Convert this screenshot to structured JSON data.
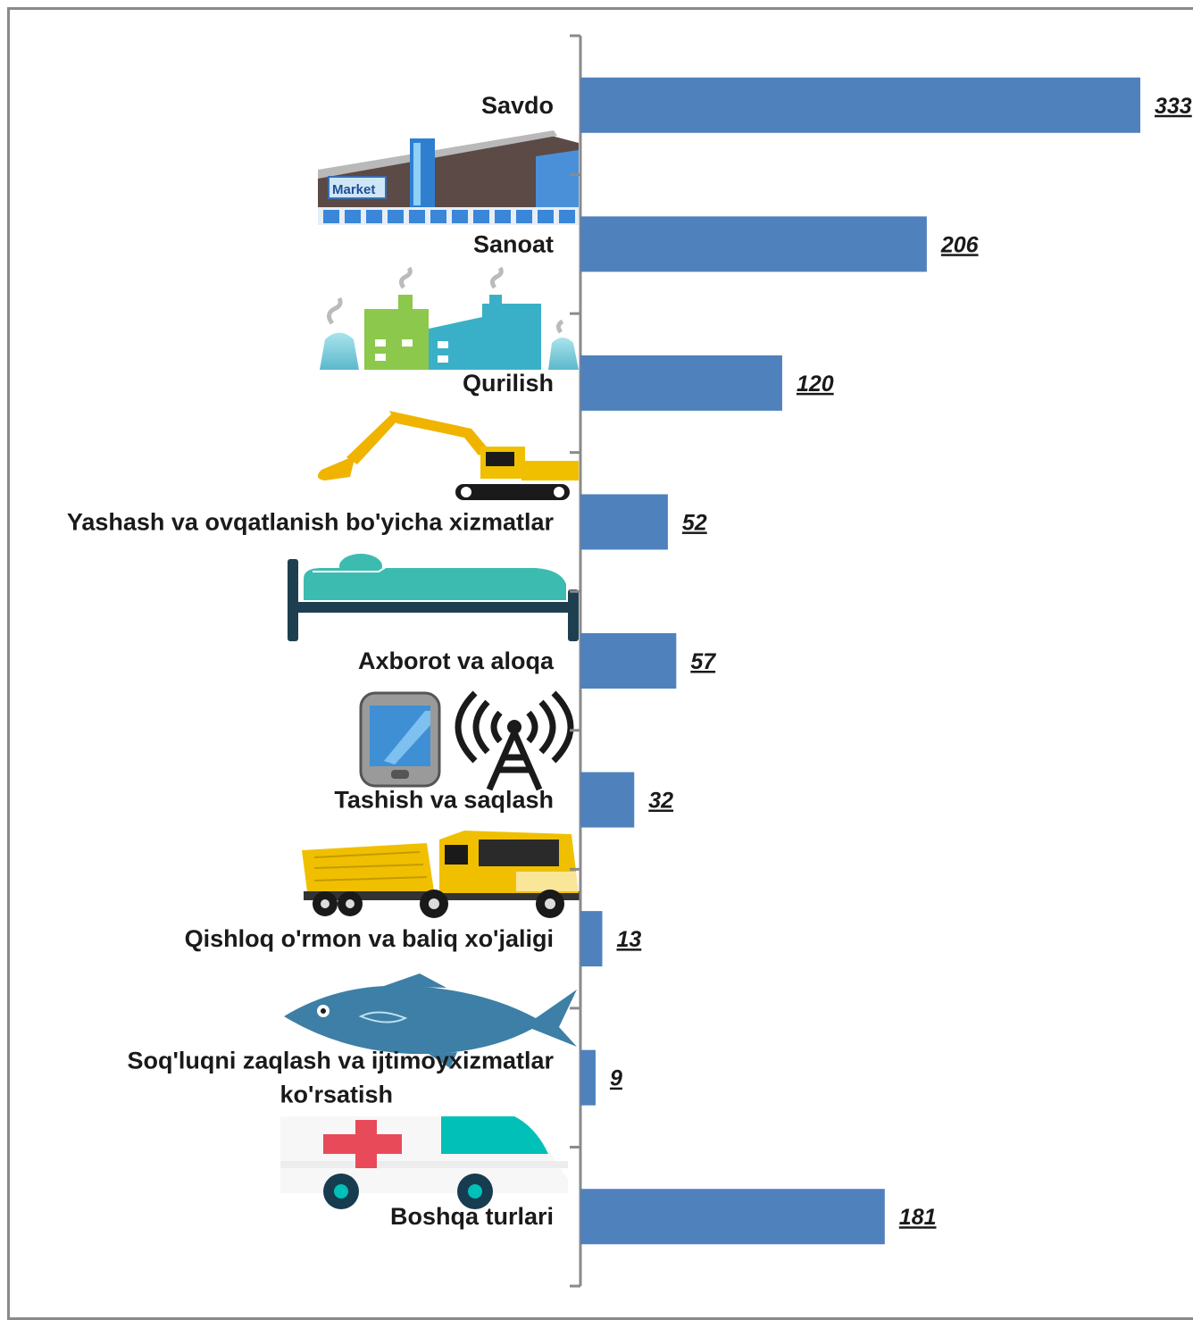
{
  "colors": {
    "bar": "#4f81bd",
    "axis": "#8a8a8a",
    "text": "#1a1a1a"
  },
  "icons": {
    "market_sign": "Market",
    "list": [
      "market-building-icon",
      "factory-icon",
      "excavator-icon",
      "bed-icon",
      "phone-and-antenna-icon",
      "dump-truck-icon",
      "fish-icon",
      "ambulance-icon"
    ]
  },
  "chart_data": {
    "type": "bar",
    "orientation": "horizontal",
    "categories": [
      "Savdo",
      "Sanoat",
      "Qurilish",
      "Yashash va ovqatlanish bo'yicha xizmatlar",
      "Axborot va aloqa",
      "Tashish va saqlash",
      "Qishloq o'rmon va baliq xo'jaligi",
      "Soq'luqni zaqlash va ijtimoyxizmatlar ko'rsatish",
      "Boshqa turlari"
    ],
    "category_lines": [
      [
        "Savdo"
      ],
      [
        "Sanoat"
      ],
      [
        "Qurilish"
      ],
      [
        "Yashash va ovqatlanish bo'yicha xizmatlar"
      ],
      [
        "Axborot va aloqa"
      ],
      [
        "Tashish va saqlash"
      ],
      [
        "Qishloq o'rmon va baliq xo'jaligi"
      ],
      [
        "Soq'luqni zaqlash va ijtimoyxizmatlar",
        "ko'rsatish"
      ],
      [
        "Boshqa turlari"
      ]
    ],
    "values": [
      333,
      206,
      120,
      52,
      57,
      32,
      13,
      9,
      181
    ],
    "xlim": [
      0,
      333
    ],
    "grid": false,
    "legend": "none"
  }
}
